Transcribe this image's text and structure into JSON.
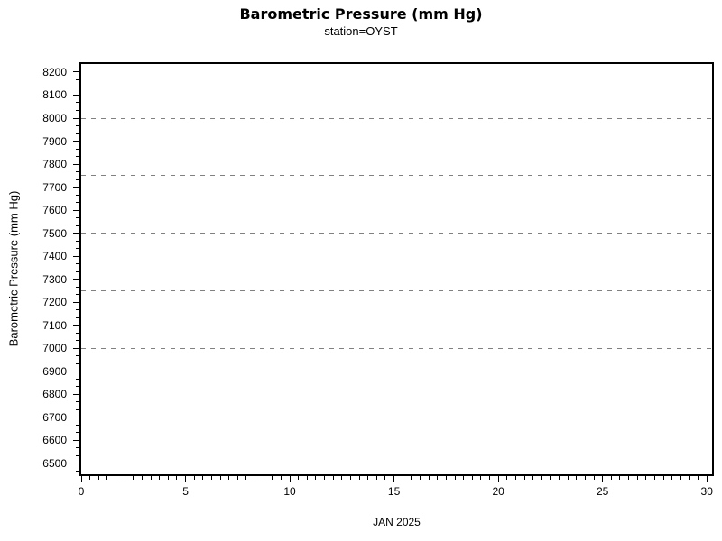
{
  "chart_data": {
    "type": "line",
    "title": "Barometric Pressure (mm Hg)",
    "subtitle": "station=OYST",
    "xlabel": "JAN 2025",
    "ylabel": "Barometric Pressure (mm Hg)",
    "x_ticks": [
      0,
      5,
      10,
      15,
      20,
      25,
      30
    ],
    "x_minor_divisions": 12,
    "xlim": [
      0,
      30.25
    ],
    "y_ticks": [
      6500,
      6600,
      6700,
      6800,
      6900,
      7000,
      7100,
      7200,
      7300,
      7400,
      7500,
      7600,
      7700,
      7800,
      7900,
      8000,
      8100,
      8200
    ],
    "y_minor_divisions": 3,
    "ylim": [
      6453,
      8235
    ],
    "y_reference_lines": [
      7000,
      7250,
      7500,
      7750,
      8000
    ],
    "reference_line_style": "dashed",
    "legend": "none",
    "series": []
  },
  "colors": {
    "background": "#ffffff",
    "axis": "#000000",
    "text": "#000000",
    "reference_line": "#808080"
  }
}
